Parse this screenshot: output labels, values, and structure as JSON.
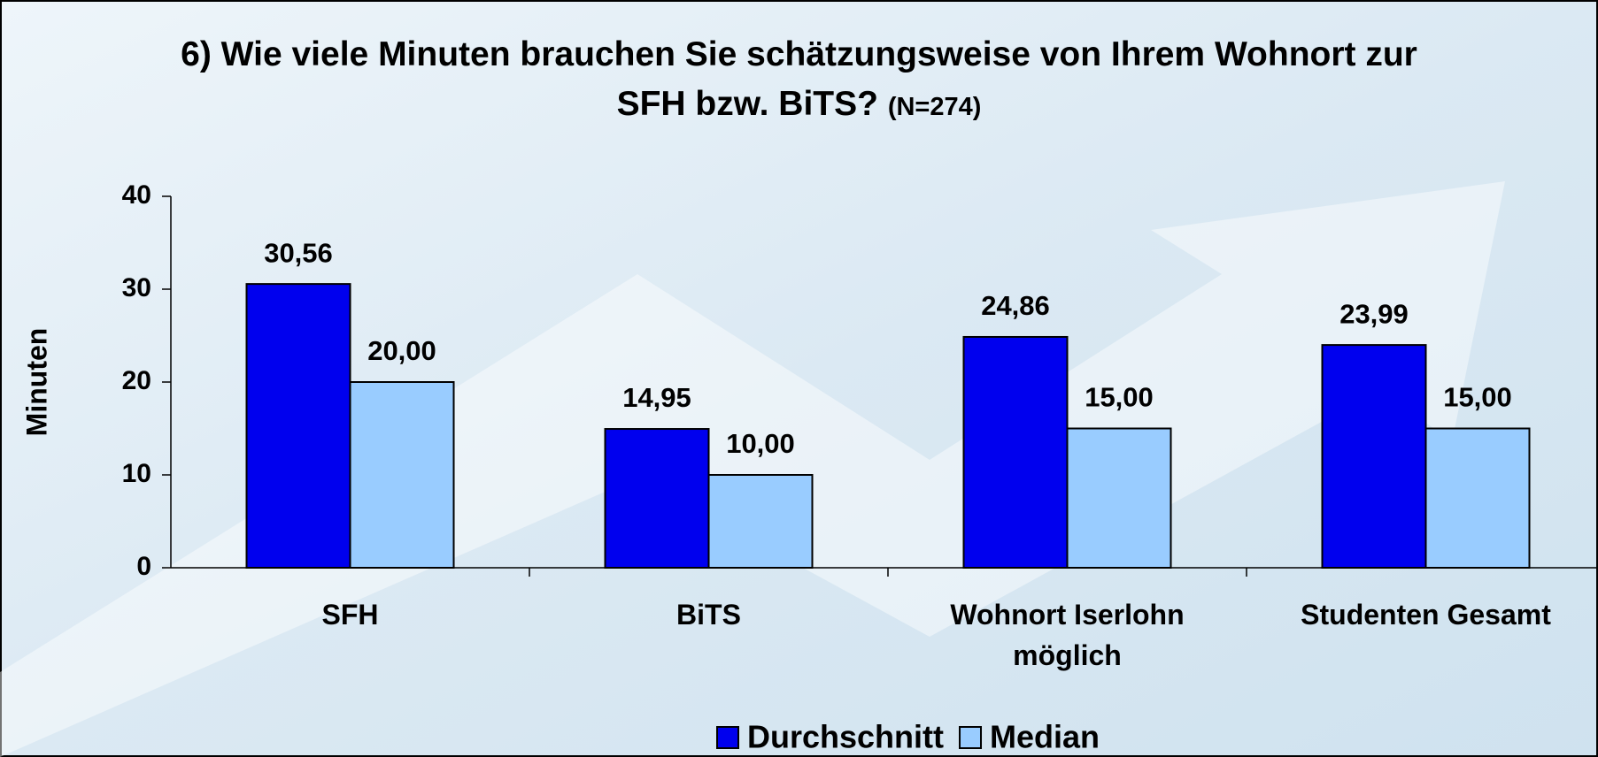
{
  "chart_data": {
    "type": "bar",
    "title": "6) Wie viele Minuten brauchen Sie schätzungsweise von Ihrem Wohnort zur SFH bzw. BiTS?",
    "subtitle": "(N=274)",
    "y_label": "Minuten",
    "categories": [
      "SFH",
      "BiTS",
      "Wohnort Iserlohn möglich",
      "Studenten Gesamt"
    ],
    "series": [
      {
        "name": "Durchschnitt",
        "color": "#0000ee",
        "values": [
          30.56,
          14.95,
          24.86,
          23.99
        ],
        "value_labels": [
          "30,56",
          "14,95",
          "24,86",
          "23,99"
        ]
      },
      {
        "name": "Median",
        "color": "#99ccff",
        "values": [
          20,
          10,
          15,
          15
        ],
        "value_labels": [
          "20,00",
          "10,00",
          "15,00",
          "15,00"
        ]
      }
    ],
    "ylim": [
      0,
      40
    ],
    "yticks": [
      0,
      10,
      20,
      30,
      40
    ],
    "grid": false,
    "legend": "bottom"
  }
}
